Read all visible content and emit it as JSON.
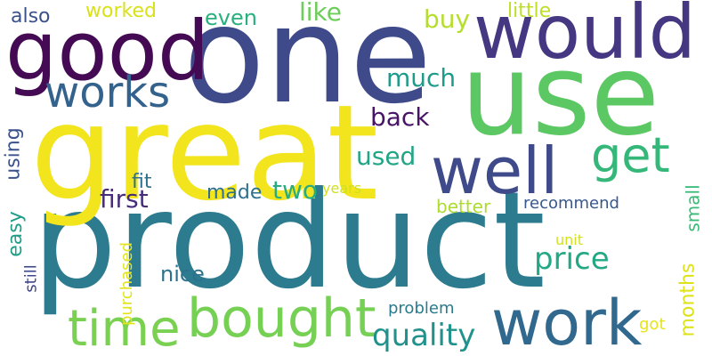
{
  "words": [
    {
      "id": "product",
      "text": "product",
      "color": "#2d7b8e",
      "rotated": false
    },
    {
      "id": "one",
      "text": "one",
      "color": "#3f4a8a",
      "rotated": false
    },
    {
      "id": "great",
      "text": "great",
      "color": "#f2e51d",
      "rotated": false
    },
    {
      "id": "use",
      "text": "use",
      "color": "#5cc863",
      "rotated": false
    },
    {
      "id": "good",
      "text": "good",
      "color": "#440a53",
      "rotated": false
    },
    {
      "id": "would",
      "text": "would",
      "color": "#453781",
      "rotated": false
    },
    {
      "id": "well",
      "text": "well",
      "color": "#3e4a89",
      "rotated": false
    },
    {
      "id": "work",
      "text": "work",
      "color": "#31688e",
      "rotated": false
    },
    {
      "id": "bought",
      "text": "bought",
      "color": "#75d054",
      "rotated": false
    },
    {
      "id": "time",
      "text": "time",
      "color": "#7ad151",
      "rotated": false
    },
    {
      "id": "works",
      "text": "works",
      "color": "#33638d",
      "rotated": false
    },
    {
      "id": "get",
      "text": "get",
      "color": "#35b779",
      "rotated": false
    },
    {
      "id": "price",
      "text": "price",
      "color": "#22a884",
      "rotated": false
    },
    {
      "id": "quality",
      "text": "quality",
      "color": "#21918c",
      "rotated": false
    },
    {
      "id": "two",
      "text": "two",
      "color": "#27ad81",
      "rotated": false
    },
    {
      "id": "first",
      "text": "first",
      "color": "#472c7a",
      "rotated": false
    },
    {
      "id": "used",
      "text": "used",
      "color": "#21a685",
      "rotated": false
    },
    {
      "id": "back",
      "text": "back",
      "color": "#481467",
      "rotated": false
    },
    {
      "id": "much",
      "text": "much",
      "color": "#1e9b8a",
      "rotated": false
    },
    {
      "id": "buy",
      "text": "buy",
      "color": "#b5de2b",
      "rotated": false
    },
    {
      "id": "like",
      "text": "like",
      "color": "#6ccd5a",
      "rotated": false
    },
    {
      "id": "even",
      "text": "even",
      "color": "#2ab07f",
      "rotated": false
    },
    {
      "id": "worked",
      "text": "worked",
      "color": "#d8e219",
      "rotated": false
    },
    {
      "id": "also",
      "text": "also",
      "color": "#3b518b",
      "rotated": false
    },
    {
      "id": "little",
      "text": "little",
      "color": "#bddf26",
      "rotated": false
    },
    {
      "id": "fit",
      "text": "fit",
      "color": "#2c728e",
      "rotated": false
    },
    {
      "id": "made",
      "text": "made",
      "color": "#2e6f8e",
      "rotated": false
    },
    {
      "id": "years",
      "text": "years",
      "color": "#d0e11c",
      "rotated": false
    },
    {
      "id": "better",
      "text": "better",
      "color": "#addc30",
      "rotated": false
    },
    {
      "id": "recommend",
      "text": "recommend",
      "color": "#38588c",
      "rotated": false
    },
    {
      "id": "nice",
      "text": "nice",
      "color": "#2c728e",
      "rotated": false
    },
    {
      "id": "unit",
      "text": "unit",
      "color": "#d2e21b",
      "rotated": false
    },
    {
      "id": "problem",
      "text": "problem",
      "color": "#297b8e",
      "rotated": false
    },
    {
      "id": "got",
      "text": "got",
      "color": "#e5e419",
      "rotated": false
    },
    {
      "id": "using",
      "text": "using",
      "color": "#3b528b",
      "rotated": true
    },
    {
      "id": "easy",
      "text": "easy",
      "color": "#1f9e89",
      "rotated": true
    },
    {
      "id": "still",
      "text": "still",
      "color": "#3f4889",
      "rotated": true
    },
    {
      "id": "purchased",
      "text": "purchased",
      "color": "#e2e418",
      "rotated": true
    },
    {
      "id": "small",
      "text": "small",
      "color": "#3aba76",
      "rotated": true
    },
    {
      "id": "months",
      "text": "months",
      "color": "#dde318",
      "rotated": true
    }
  ]
}
